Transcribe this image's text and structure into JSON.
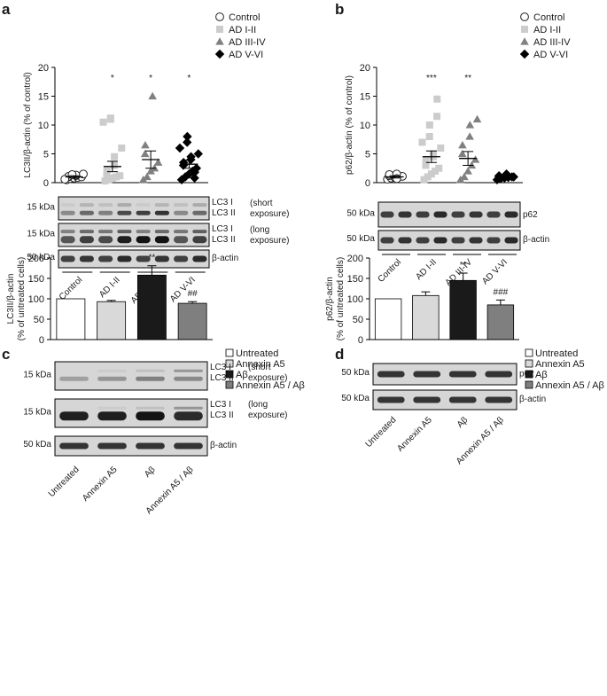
{
  "colors": {
    "control": "#ffffff",
    "ad_1_2": "#cccccc",
    "ad_3_4": "#808080",
    "ad_5_6": "#000000",
    "untreated": "#ffffff",
    "annexin": "#d9d9d9",
    "abeta": "#1a1a1a",
    "annexin_abeta": "#7f7f7f",
    "error_bar": "#000000"
  },
  "chart_data": [
    {
      "panel": "a",
      "type": "scatter",
      "ylabel": "LC3II/β-actin (% of control)",
      "ylim": [
        0,
        20
      ],
      "yticks": [
        "0",
        "5",
        "10",
        "15",
        "20"
      ],
      "categories": [
        "Control",
        "AD I-II",
        "AD III-IV",
        "AD V-VI"
      ],
      "legend": [
        "Control",
        "AD I-II",
        "AD III-IV",
        "AD V-VI"
      ],
      "markers": [
        "circle-open",
        "square",
        "triangle",
        "diamond"
      ],
      "significance": [
        "",
        "*",
        "*",
        "*"
      ],
      "means": [
        1.0,
        2.8,
        4.0,
        3.2
      ],
      "sems": [
        0.2,
        0.9,
        1.5,
        0.7
      ],
      "series": [
        {
          "name": "Control",
          "values": [
            0.5,
            0.7,
            0.8,
            0.9,
            1.0,
            1.0,
            1.1,
            1.2,
            1.3,
            1.5,
            0.6,
            1.4
          ]
        },
        {
          "name": "AD I-II",
          "values": [
            0.3,
            0.5,
            0.8,
            1.0,
            1.2,
            1.5,
            2.0,
            3.0,
            4.5,
            6.0,
            10.5,
            11.0,
            11.2
          ]
        },
        {
          "name": "AD III-IV",
          "values": [
            0.5,
            1.0,
            2.0,
            2.5,
            3.5,
            5.0,
            6.5,
            15.0
          ]
        },
        {
          "name": "AD V-VI",
          "values": [
            0.5,
            1.0,
            1.5,
            2.0,
            2.5,
            3.0,
            3.5,
            4.0,
            4.5,
            5.0,
            6.0,
            7.0,
            8.0,
            0.8,
            1.8
          ]
        }
      ],
      "blot": {
        "rows": [
          {
            "kda": "15 kDa",
            "labels": [
              "LC3 I",
              "LC3 II"
            ],
            "note": [
              "(short",
              "exposure)"
            ]
          },
          {
            "kda": "15 kDa",
            "labels": [
              "LC3 I",
              "LC3 II"
            ],
            "note": [
              "(long",
              "exposure)"
            ]
          },
          {
            "kda": "50 kDa",
            "labels": [
              "β-actin"
            ],
            "note": []
          }
        ],
        "lane_labels": [
          "Control",
          "AD I-II",
          "AD III-IV",
          "AD V-VI"
        ]
      }
    },
    {
      "panel": "b",
      "type": "scatter",
      "ylabel": "p62/β-actin (% of control)",
      "ylim": [
        0,
        20
      ],
      "yticks": [
        "0",
        "5",
        "10",
        "15",
        "20"
      ],
      "categories": [
        "Control",
        "AD I-II",
        "AD III-IV",
        "AD V-VI"
      ],
      "legend": [
        "Control",
        "AD I-II",
        "AD III-IV",
        "AD V-VI"
      ],
      "markers": [
        "circle-open",
        "square",
        "triangle",
        "diamond"
      ],
      "significance": [
        "",
        "***",
        "**",
        ""
      ],
      "means": [
        1.0,
        4.5,
        4.2,
        1.0
      ],
      "sems": [
        0.2,
        1.0,
        1.2,
        0.2
      ],
      "series": [
        {
          "name": "Control",
          "values": [
            0.6,
            0.8,
            0.9,
            1.0,
            1.1,
            1.2,
            1.4,
            1.5,
            0.7
          ]
        },
        {
          "name": "AD I-II",
          "values": [
            0.5,
            1.0,
            1.5,
            2.0,
            2.5,
            3.0,
            4.0,
            4.5,
            5.0,
            6.0,
            7.0,
            8.0,
            10.0,
            11.5,
            14.5
          ]
        },
        {
          "name": "AD III-IV",
          "values": [
            0.5,
            1.0,
            2.0,
            3.0,
            4.0,
            5.0,
            6.5,
            8.0,
            10.0,
            11.0
          ]
        },
        {
          "name": "AD V-VI",
          "values": [
            0.5,
            0.7,
            0.8,
            0.9,
            1.0,
            1.1,
            1.2,
            1.3,
            1.5,
            1.0
          ]
        }
      ],
      "blot": {
        "rows": [
          {
            "kda": "50 kDa",
            "labels": [
              "p62"
            ],
            "note": []
          },
          {
            "kda": "50 kDa",
            "labels": [
              "β-actin"
            ],
            "note": []
          }
        ],
        "lane_labels": [
          "Control",
          "AD I-II",
          "AD III-IV",
          "AD V-VI"
        ]
      }
    },
    {
      "panel": "c",
      "type": "bar",
      "ylabel": [
        "LC3II/β-actin",
        "(% of untreated cells)"
      ],
      "ylim": [
        0,
        200
      ],
      "yticks": [
        "0",
        "50",
        "100",
        "150",
        "200"
      ],
      "categories": [
        "Untreated",
        "Annexin A5",
        "Aβ",
        "Annexin A5 / Aβ"
      ],
      "legend": [
        "Untreated",
        "Annexin A5",
        "Aβ",
        "Annexin A5 / Aβ"
      ],
      "values": [
        100,
        93,
        158,
        89
      ],
      "errors": [
        0,
        3,
        23,
        4
      ],
      "significance": [
        "",
        "",
        "**",
        "##"
      ],
      "blot": {
        "rows": [
          {
            "kda": "15 kDa",
            "labels": [
              "LC3 I",
              "LC3 II"
            ],
            "note": [
              "(short",
              "exposure)"
            ]
          },
          {
            "kda": "15 kDa",
            "labels": [
              "LC3 I",
              "LC3 II"
            ],
            "note": [
              "(long",
              "exposure)"
            ]
          },
          {
            "kda": "50 kDa",
            "labels": [
              "β-actin"
            ],
            "note": []
          }
        ],
        "lane_labels": [
          "Untreated",
          "Annexin A5",
          "Aβ",
          "Annexin A5 / Aβ"
        ]
      }
    },
    {
      "panel": "d",
      "type": "bar",
      "ylabel": [
        "p62/β-actin",
        "(% of untreated cells)"
      ],
      "ylim": [
        0,
        200
      ],
      "yticks": [
        "0",
        "50",
        "100",
        "150",
        "200"
      ],
      "categories": [
        "Untreated",
        "Annexin A5",
        "Aβ",
        "Annexin A5 / Aβ"
      ],
      "legend": [
        "Untreated",
        "Annexin A5",
        "Aβ",
        "Annexin A5 / Aβ"
      ],
      "values": [
        100,
        108,
        145,
        85
      ],
      "errors": [
        0,
        9,
        18,
        12
      ],
      "significance": [
        "",
        "",
        "**",
        "###"
      ],
      "blot": {
        "rows": [
          {
            "kda": "50 kDa",
            "labels": [
              "p62"
            ],
            "note": []
          },
          {
            "kda": "50 kDa",
            "labels": [
              "β-actin"
            ],
            "note": []
          }
        ],
        "lane_labels": [
          "Untreated",
          "Annexin A5",
          "Aβ",
          "Annexin A5 / Aβ"
        ]
      }
    }
  ]
}
